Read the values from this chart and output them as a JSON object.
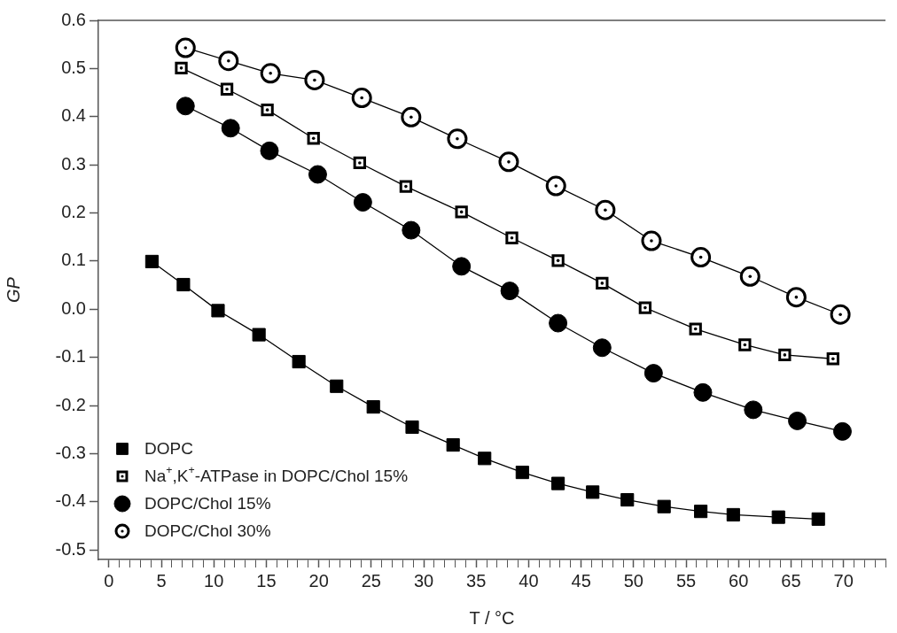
{
  "chart_data": {
    "type": "line",
    "xlabel": "T / °C",
    "ylabel": "GP",
    "legend": "bottom left",
    "line_style": "solid",
    "grid": false,
    "xlim": [
      -1,
      74
    ],
    "ylim": [
      -0.52,
      0.6
    ],
    "xticks": [
      0,
      {
        "value": 1,
        "label": null
      },
      {
        "value": 2,
        "label": null
      },
      {
        "value": 3,
        "label": null
      },
      {
        "value": 4,
        "label": null
      },
      5,
      {
        "value": 6,
        "label": null
      },
      {
        "value": 7,
        "label": null
      },
      {
        "value": 8,
        "label": null
      },
      {
        "value": 9,
        "label": null
      },
      10,
      {
        "value": 11,
        "label": null
      },
      {
        "value": 12,
        "label": null
      },
      {
        "value": 13,
        "label": null
      },
      {
        "value": 14,
        "label": null
      },
      15,
      {
        "value": 16,
        "label": null
      },
      {
        "value": 17,
        "label": null
      },
      {
        "value": 18,
        "label": null
      },
      {
        "value": 19,
        "label": null
      },
      20,
      {
        "value": 21,
        "label": null
      },
      {
        "value": 22,
        "label": null
      },
      {
        "value": 23,
        "label": null
      },
      {
        "value": 24,
        "label": null
      },
      25,
      {
        "value": 26,
        "label": null
      },
      {
        "value": 27,
        "label": null
      },
      {
        "value": 28,
        "label": null
      },
      {
        "value": 29,
        "label": null
      },
      30,
      {
        "value": 31,
        "label": null
      },
      {
        "value": 32,
        "label": null
      },
      {
        "value": 33,
        "label": null
      },
      {
        "value": 34,
        "label": null
      },
      35,
      {
        "value": 36,
        "label": null
      },
      {
        "value": 37,
        "label": null
      },
      {
        "value": 38,
        "label": null
      },
      {
        "value": 39,
        "label": null
      },
      40,
      {
        "value": 41,
        "label": null
      },
      {
        "value": 42,
        "label": null
      },
      {
        "value": 43,
        "label": null
      },
      {
        "value": 44,
        "label": null
      },
      45,
      {
        "value": 46,
        "label": null
      },
      {
        "value": 47,
        "label": null
      },
      {
        "value": 48,
        "label": null
      },
      {
        "value": 49,
        "label": null
      },
      50,
      {
        "value": 51,
        "label": null
      },
      {
        "value": 52,
        "label": null
      },
      {
        "value": 53,
        "label": null
      },
      {
        "value": 54,
        "label": null
      },
      55,
      {
        "value": 56,
        "label": null
      },
      {
        "value": 57,
        "label": null
      },
      {
        "value": 58,
        "label": null
      },
      {
        "value": 59,
        "label": null
      },
      60,
      {
        "value": 61,
        "label": null
      },
      {
        "value": 62,
        "label": null
      },
      {
        "value": 63,
        "label": null
      },
      {
        "value": 64,
        "label": null
      },
      65,
      {
        "value": 66,
        "label": null
      },
      {
        "value": 67,
        "label": null
      },
      {
        "value": 68,
        "label": null
      },
      {
        "value": 69,
        "label": null
      },
      70,
      {
        "value": 71,
        "label": null
      },
      {
        "value": 72,
        "label": null
      },
      {
        "value": 73,
        "label": null
      },
      {
        "value": 74,
        "label": null
      }
    ],
    "yticks": [
      {
        "value": -0.5,
        "label": "-0.5"
      },
      {
        "value": -0.4,
        "label": "-0.4"
      },
      {
        "value": -0.3,
        "label": "-0.3"
      },
      {
        "value": -0.2,
        "label": "-0.2"
      },
      {
        "value": -0.1,
        "label": "-0.1"
      },
      {
        "value": 0,
        "label": "0.0"
      },
      {
        "value": 0.1,
        "label": "0.1"
      },
      {
        "value": 0.2,
        "label": "0.2"
      },
      {
        "value": 0.3,
        "label": "0.3"
      },
      {
        "value": 0.4,
        "label": "0.4"
      },
      {
        "value": 0.5,
        "label": "0.5"
      },
      {
        "value": 0.6,
        "label": "0.6"
      }
    ],
    "series": [
      {
        "name": "DOPC",
        "color": "#000000",
        "marker": "square",
        "x": [
          4.1,
          7.1,
          10.4,
          14.3,
          18.1,
          21.7,
          25.2,
          28.9,
          32.8,
          35.8,
          39.4,
          42.8,
          46.1,
          49.4,
          52.9,
          56.4,
          59.5,
          63.8,
          67.6
        ],
        "values": [
          0.099,
          0.051,
          -0.003,
          -0.053,
          -0.109,
          -0.16,
          -0.203,
          -0.245,
          -0.282,
          -0.31,
          -0.339,
          -0.362,
          -0.38,
          -0.396,
          -0.41,
          -0.42,
          -0.427,
          -0.432,
          -0.436
        ]
      },
      {
        "name": "Na$^{+}$,K$^{+}$-ATPase in DOPC/Chol 15%",
        "color": "#000000",
        "marker": "square",
        "x": [
          6.9,
          11.25,
          15.1,
          19.5,
          23.9,
          28.3,
          33.6,
          38.4,
          42.8,
          47.0,
          51.1,
          55.9,
          60.6,
          64.4,
          69.0
        ],
        "values": [
          0.501,
          0.457,
          0.414,
          0.355,
          0.304,
          0.255,
          0.202,
          0.148,
          0.101,
          0.054,
          0.003,
          -0.041,
          -0.074,
          -0.095,
          -0.103
        ]
      },
      {
        "name": "DOPC/Chol 15%",
        "color": "#000000",
        "marker": "circle",
        "x": [
          7.3,
          11.6,
          15.3,
          19.9,
          24.2,
          28.8,
          33.6,
          38.2,
          42.8,
          47.0,
          51.9,
          56.6,
          61.4,
          65.6,
          69.9
        ],
        "values": [
          0.422,
          0.376,
          0.329,
          0.28,
          0.222,
          0.164,
          0.089,
          0.038,
          -0.029,
          -0.08,
          -0.133,
          -0.173,
          -0.209,
          -0.232,
          -0.254
        ]
      },
      {
        "name": "DOPC/Chol 30%",
        "color": "#000000",
        "marker": "circle",
        "x": [
          7.3,
          11.4,
          15.4,
          19.6,
          24.1,
          28.8,
          33.2,
          38.1,
          42.6,
          47.3,
          51.7,
          56.4,
          61.1,
          65.5,
          69.7
        ],
        "values": [
          0.543,
          0.516,
          0.49,
          0.476,
          0.439,
          0.399,
          0.354,
          0.306,
          0.256,
          0.206,
          0.142,
          0.108,
          0.068,
          0.025,
          -0.011
        ]
      }
    ]
  }
}
